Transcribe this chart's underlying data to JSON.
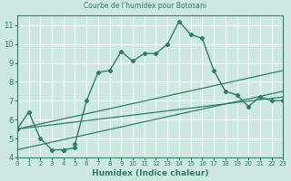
{
  "title": "Courbe de l'humidex pour Botosani",
  "xlabel": "Humidex (Indice chaleur)",
  "bg_color": "#cce8e0",
  "grid_color": "#ffffff",
  "line_color": "#2e7d6e",
  "xlim": [
    0,
    23
  ],
  "ylim": [
    4,
    11.5
  ],
  "xticks": [
    0,
    1,
    2,
    3,
    4,
    5,
    6,
    7,
    8,
    9,
    10,
    11,
    12,
    13,
    14,
    15,
    16,
    17,
    18,
    19,
    20,
    21,
    22,
    23
  ],
  "yticks": [
    4,
    5,
    6,
    7,
    8,
    9,
    10,
    11
  ],
  "line1_x": [
    0,
    1,
    2,
    3,
    4,
    4,
    5,
    5,
    6,
    7,
    8,
    9,
    10,
    11,
    12,
    13,
    14,
    15,
    16,
    17,
    18,
    19,
    20,
    21,
    22,
    23
  ],
  "line1_y": [
    5.5,
    6.4,
    5.0,
    4.4,
    4.4,
    4.4,
    4.5,
    4.7,
    7.0,
    8.5,
    8.6,
    9.6,
    9.1,
    9.5,
    9.5,
    10.0,
    11.2,
    10.5,
    10.3,
    8.6,
    7.5,
    7.3,
    6.7,
    7.2,
    7.0,
    7.0
  ],
  "line2_x": [
    0,
    23
  ],
  "line2_y": [
    5.5,
    7.2
  ],
  "line3_x": [
    0,
    23
  ],
  "line3_y": [
    5.5,
    8.6
  ],
  "line4_x": [
    0,
    23
  ],
  "line4_y": [
    4.4,
    7.5
  ]
}
